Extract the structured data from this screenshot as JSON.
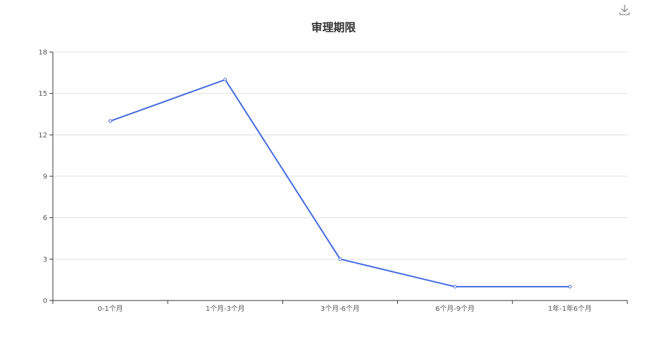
{
  "toolbar": {
    "download_icon": "download-icon"
  },
  "chart_data": {
    "type": "line",
    "title": "审理期限",
    "categories": [
      "0-1个月",
      "1个月-3个月",
      "3个月-6个月",
      "6个月-9个月",
      "1年-1年6个月"
    ],
    "values": [
      13,
      16,
      3,
      1,
      1
    ],
    "ylim": [
      0,
      18
    ],
    "yticks": [
      0,
      3,
      6,
      9,
      12,
      15,
      18
    ],
    "grid": true,
    "colors": {
      "line": "#4169e1",
      "grid": "#e0e0e0",
      "axis": "#333333"
    }
  }
}
